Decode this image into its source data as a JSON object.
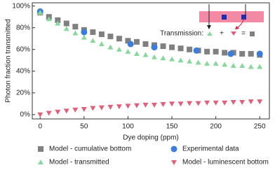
{
  "chart_data": {
    "type": "scatter",
    "x_label": "Dye doping (ppm)",
    "y_label": "Photon fraction transmitted",
    "xlim": [
      -9,
      261
    ],
    "xticks": [
      0,
      50,
      100,
      150,
      200,
      250
    ],
    "ylim": [
      -4,
      103
    ],
    "yticks": [
      {
        "value": 0,
        "label": "0%"
      },
      {
        "value": 20,
        "label": "20%"
      },
      {
        "value": 40,
        "label": "40%"
      },
      {
        "value": 60,
        "label": "60%"
      },
      {
        "value": 80,
        "label": "80%"
      },
      {
        "value": 100,
        "label": "100%"
      }
    ],
    "annotations": [
      "Transmission:",
      "+",
      "="
    ],
    "series": [
      {
        "name": "Model - cumulative bottom",
        "color": "#808080",
        "marker": "square",
        "x": [
          0,
          10,
          20,
          30,
          40,
          50,
          60,
          70,
          80,
          90,
          100,
          110,
          120,
          130,
          140,
          150,
          160,
          170,
          180,
          190,
          200,
          210,
          220,
          230,
          240,
          250
        ],
        "values": [
          94,
          90,
          87,
          84,
          81,
          78,
          76,
          74,
          72,
          70,
          68,
          67,
          65,
          64,
          63,
          62,
          61,
          60,
          59,
          58,
          58,
          57,
          57,
          56,
          56,
          55
        ]
      },
      {
        "name": "Experimental data",
        "color": "#3b7dd8",
        "marker": "circle",
        "x": [
          0,
          50,
          103,
          130,
          178,
          217,
          250
        ],
        "values": [
          95,
          76,
          65,
          62,
          59,
          56,
          56
        ]
      },
      {
        "name": "Model - transmitted",
        "color": "#86d99a",
        "marker": "triangle-up",
        "x": [
          0,
          10,
          20,
          30,
          40,
          50,
          60,
          70,
          80,
          90,
          100,
          110,
          120,
          130,
          140,
          150,
          160,
          170,
          180,
          190,
          200,
          210,
          220,
          230,
          240,
          250
        ],
        "values": [
          94,
          88,
          84,
          79,
          75,
          71,
          68,
          65,
          62,
          60,
          58,
          56,
          55,
          53,
          52,
          51,
          50,
          49,
          48,
          47,
          47,
          46,
          45,
          45,
          44,
          44
        ]
      },
      {
        "name": "Model - luminescent bottom",
        "color": "#e0607a",
        "marker": "triangle-down",
        "x": [
          0,
          10,
          20,
          30,
          40,
          50,
          60,
          70,
          80,
          90,
          100,
          110,
          120,
          130,
          140,
          150,
          160,
          170,
          180,
          190,
          200,
          210,
          220,
          230,
          240,
          250
        ],
        "values": [
          0,
          1.5,
          2.5,
          3.5,
          4.5,
          5,
          6,
          6.5,
          7,
          7.5,
          8,
          8.5,
          9,
          9,
          9.5,
          10,
          10,
          10.5,
          10.5,
          11,
          11,
          11,
          11.5,
          11.5,
          12,
          12
        ]
      }
    ]
  }
}
